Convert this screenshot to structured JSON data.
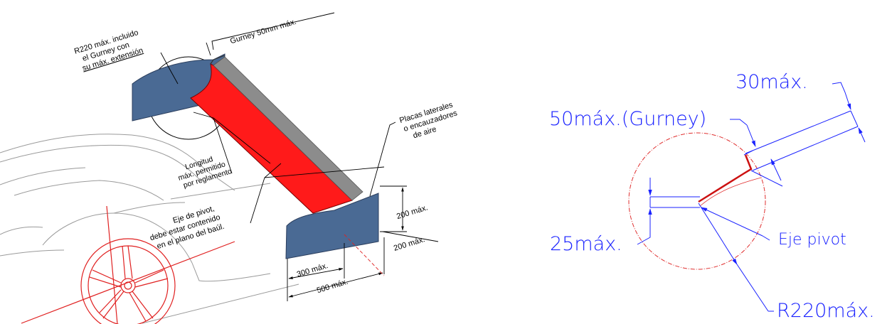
{
  "left_drawing": {
    "labels": {
      "r220": [
        "R220 máx. incluido",
        "el Gurney con",
        "su máx. extensión"
      ],
      "gurney": "Gurney 50mm máx.",
      "placas": [
        "Placas laterales",
        "o encauzadores",
        "de aire"
      ],
      "longitud": [
        "Longitud",
        "máx. permitido",
        "por reglamento"
      ],
      "eje": [
        "Eje de pivot,",
        "debe estar contenido",
        "en el plano del baúl."
      ],
      "dim_200_height": "200 máx.",
      "dim_200_offset": "200 máx.",
      "dim_300": "300 máx.",
      "dim_500": "500 máx."
    }
  },
  "right_drawing": {
    "labels": {
      "max30": "30máx.",
      "gurney50": "50máx.(Gurney)",
      "max25": "25máx.",
      "eje_pivot": "Eje pivot",
      "r220": "R220máx."
    }
  },
  "colors": {
    "wing": "#ff1a1a",
    "endplate": "#4a6a94",
    "dimension": "#1a22ff",
    "radius_circle": "#e03030",
    "profile": "#cc1111",
    "car_outline": "#9a9a9a",
    "wheel": "#e02020"
  }
}
